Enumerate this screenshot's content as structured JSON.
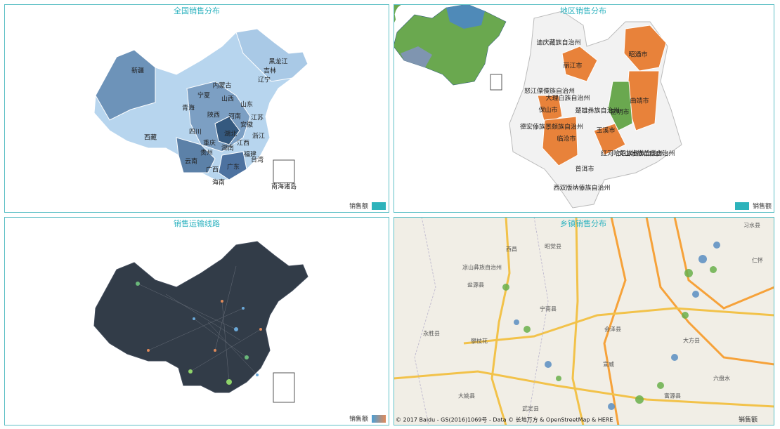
{
  "panels": [
    {
      "title": "全国销售分布",
      "legend": "销售额",
      "labels": [
        "新疆",
        "西藏",
        "青海",
        "内蒙古",
        "黑龙江",
        "吉林",
        "辽宁",
        "宁夏",
        "山西",
        "山东",
        "陕西",
        "河南",
        "四川",
        "湖北",
        "安徽",
        "江苏",
        "重庆",
        "湖南",
        "江西",
        "浙江",
        "贵州",
        "云南",
        "广西",
        "广东",
        "福建",
        "台湾",
        "海南",
        "南海诸岛"
      ]
    },
    {
      "title": "地区销售分布",
      "legend": "销售额",
      "labels": [
        "迪庆藏族自治州",
        "丽江市",
        "昭通市",
        "怒江傈僳族自治州",
        "大理白族自治州",
        "保山市",
        "楚雄彝族自治州",
        "昆明市",
        "曲靖市",
        "德宏傣族景颇族自治州",
        "临沧市",
        "玉溪市",
        "红河哈尼族彝族自治州",
        "文山壮族苗族自治州",
        "普洱市",
        "西双版纳傣族自治州"
      ]
    },
    {
      "title": "销售运输线路",
      "legend": "销售额"
    },
    {
      "title": "乡镇销售分布",
      "legend": "销售额",
      "labels": [
        "西昌",
        "昭觉县",
        "凉山彝族自治州",
        "盐源县",
        "宁南县",
        "永胜县",
        "攀枝花",
        "大姚县",
        "武定县",
        "会泽县",
        "宣威",
        "富源县",
        "六盘水",
        "习水县",
        "仁怀",
        "大方县"
      ],
      "attribution": "© 2017 Baidu - GS(2016)1069号 - Data © 长地万方 & OpenStreetMap & HERE"
    }
  ]
}
